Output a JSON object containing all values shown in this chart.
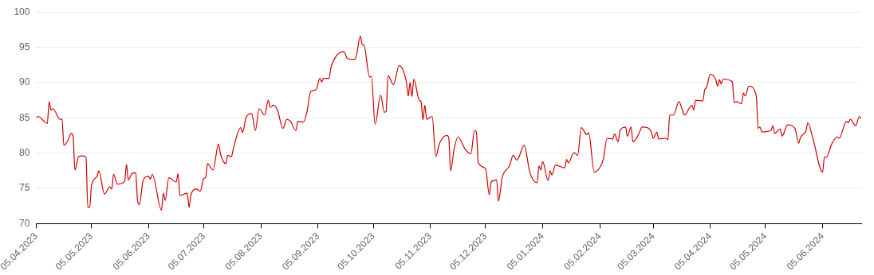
{
  "chart_data": {
    "type": "line",
    "grid": "y",
    "legend": false,
    "marker": "none",
    "xlim": [
      "2023-04-05",
      "2024-06-26"
    ],
    "xticks": [
      {
        "value": "2023-04-05",
        "label": "05.04.2023"
      },
      {
        "value": "2023-05-05",
        "label": "05.05.2023"
      },
      {
        "value": "2023-06-05",
        "label": "05.06.2023"
      },
      {
        "value": "2023-07-05",
        "label": "05.07.2023"
      },
      {
        "value": "2023-08-05",
        "label": "05.08.2023"
      },
      {
        "value": "2023-09-05",
        "label": "05.09.2023"
      },
      {
        "value": "2023-10-05",
        "label": "05.10.2023"
      },
      {
        "value": "2023-11-05",
        "label": "05.11.2023"
      },
      {
        "value": "2023-12-05",
        "label": "05.12.2023"
      },
      {
        "value": "2024-01-05",
        "label": "05.01.2024"
      },
      {
        "value": "2024-02-05",
        "label": "05.02.2024"
      },
      {
        "value": "2024-03-05",
        "label": "05.03.2024"
      },
      {
        "value": "2024-04-05",
        "label": "05.04.2024"
      },
      {
        "value": "2024-05-05",
        "label": "05.05.2024"
      },
      {
        "value": "2024-06-05",
        "label": "05.06.2024"
      }
    ],
    "ylim": [
      70,
      100
    ],
    "yticks": [
      70,
      75,
      80,
      85,
      90,
      95,
      100
    ],
    "x": [
      "2023-04-05",
      "2023-04-06",
      "2023-04-11",
      "2023-04-12",
      "2023-04-13",
      "2023-04-14",
      "2023-04-18",
      "2023-04-19",
      "2023-04-20",
      "2023-04-22",
      "2023-04-24",
      "2023-04-25",
      "2023-04-26",
      "2023-04-28",
      "2023-04-30",
      "2023-05-02",
      "2023-05-03",
      "2023-05-04",
      "2023-05-05",
      "2023-05-08",
      "2023-05-09",
      "2023-05-12",
      "2023-05-15",
      "2023-05-16",
      "2023-05-17",
      "2023-05-19",
      "2023-05-23",
      "2023-05-24",
      "2023-05-25",
      "2023-05-27",
      "2023-05-29",
      "2023-05-30",
      "2023-05-31",
      "2023-06-02",
      "2023-06-05",
      "2023-06-06",
      "2023-06-07",
      "2023-06-12",
      "2023-06-13",
      "2023-06-14",
      "2023-06-16",
      "2023-06-20",
      "2023-06-21",
      "2023-06-22",
      "2023-06-26",
      "2023-06-27",
      "2023-06-28",
      "2023-07-01",
      "2023-07-03",
      "2023-07-05",
      "2023-07-06",
      "2023-07-07",
      "2023-07-10",
      "2023-07-13",
      "2023-07-14",
      "2023-07-17",
      "2023-07-18",
      "2023-07-20",
      "2023-07-21",
      "2023-07-25",
      "2023-07-26",
      "2023-07-28",
      "2023-07-31",
      "2023-08-02",
      "2023-08-04",
      "2023-08-07",
      "2023-08-09",
      "2023-08-10",
      "2023-08-12",
      "2023-08-14",
      "2023-08-17",
      "2023-08-19",
      "2023-08-21",
      "2023-08-24",
      "2023-08-25",
      "2023-08-28",
      "2023-08-30",
      "2023-09-01",
      "2023-09-04",
      "2023-09-06",
      "2023-09-07",
      "2023-09-08",
      "2023-09-11",
      "2023-09-12",
      "2023-09-15",
      "2023-09-19",
      "2023-09-21",
      "2023-09-25",
      "2023-09-26",
      "2023-09-28",
      "2023-09-29",
      "2023-09-30",
      "2023-10-03",
      "2023-10-04",
      "2023-10-06",
      "2023-10-09",
      "2023-10-11",
      "2023-10-12",
      "2023-10-13",
      "2023-10-16",
      "2023-10-19",
      "2023-10-23",
      "2023-10-24",
      "2023-10-25",
      "2023-10-26",
      "2023-10-27",
      "2023-10-30",
      "2023-10-31",
      "2023-11-01",
      "2023-11-02",
      "2023-11-03",
      "2023-11-06",
      "2023-11-08",
      "2023-11-10",
      "2023-11-14",
      "2023-11-15",
      "2023-11-16",
      "2023-11-18",
      "2023-11-20",
      "2023-11-24",
      "2023-11-27",
      "2023-11-29",
      "2023-11-30",
      "2023-12-01",
      "2023-12-05",
      "2023-12-07",
      "2023-12-08",
      "2023-12-11",
      "2023-12-12",
      "2023-12-14",
      "2023-12-18",
      "2023-12-20",
      "2023-12-22",
      "2023-12-26",
      "2023-12-29",
      "2024-01-02",
      "2024-01-03",
      "2024-01-04",
      "2024-01-05",
      "2024-01-08",
      "2024-01-09",
      "2024-01-10",
      "2024-01-12",
      "2024-01-17",
      "2024-01-18",
      "2024-01-19",
      "2024-01-22",
      "2024-01-24",
      "2024-01-26",
      "2024-01-29",
      "2024-01-30",
      "2024-02-02",
      "2024-02-06",
      "2024-02-07",
      "2024-02-09",
      "2024-02-12",
      "2024-02-13",
      "2024-02-15",
      "2024-02-16",
      "2024-02-19",
      "2024-02-20",
      "2024-02-22",
      "2024-02-23",
      "2024-02-26",
      "2024-02-28",
      "2024-03-02",
      "2024-03-04",
      "2024-03-05",
      "2024-03-07",
      "2024-03-08",
      "2024-03-12",
      "2024-03-13",
      "2024-03-14",
      "2024-03-16",
      "2024-03-19",
      "2024-03-21",
      "2024-03-22",
      "2024-03-26",
      "2024-03-27",
      "2024-03-28",
      "2024-04-01",
      "2024-04-02",
      "2024-04-03",
      "2024-04-05",
      "2024-04-08",
      "2024-04-09",
      "2024-04-10",
      "2024-04-11",
      "2024-04-12",
      "2024-04-17",
      "2024-04-18",
      "2024-04-19",
      "2024-04-22",
      "2024-04-23",
      "2024-04-24",
      "2024-04-26",
      "2024-04-30",
      "2024-05-01",
      "2024-05-02",
      "2024-05-03",
      "2024-05-08",
      "2024-05-09",
      "2024-05-10",
      "2024-05-13",
      "2024-05-14",
      "2024-05-17",
      "2024-05-21",
      "2024-05-23",
      "2024-05-24",
      "2024-05-27",
      "2024-05-28",
      "2024-05-31",
      "2024-06-05",
      "2024-06-06",
      "2024-06-07",
      "2024-06-10",
      "2024-06-13",
      "2024-06-14",
      "2024-06-18",
      "2024-06-19",
      "2024-06-20",
      "2024-06-23",
      "2024-06-25",
      "2024-06-26"
    ],
    "series": [
      {
        "color": "#cc0000",
        "values": [
          85.0,
          85.2,
          84.2,
          87.3,
          86.1,
          86.3,
          84.8,
          84.8,
          81.1,
          81.7,
          82.8,
          82.4,
          77.6,
          79.5,
          79.6,
          79.4,
          72.3,
          72.3,
          75.4,
          76.7,
          77.5,
          74.2,
          75.2,
          74.9,
          77.0,
          75.6,
          76.0,
          78.4,
          76.2,
          77.1,
          77.2,
          73.3,
          72.7,
          76.1,
          76.7,
          76.3,
          77.0,
          71.9,
          74.3,
          73.3,
          76.5,
          75.9,
          77.1,
          74.0,
          74.3,
          72.3,
          74.1,
          74.9,
          74.6,
          76.4,
          76.6,
          78.5,
          77.6,
          81.3,
          79.9,
          78.5,
          79.7,
          79.5,
          80.6,
          83.6,
          82.9,
          85.1,
          85.6,
          83.2,
          86.3,
          85.4,
          87.5,
          86.5,
          86.8,
          86.1,
          83.5,
          84.8,
          84.5,
          83.2,
          84.5,
          84.4,
          85.8,
          88.7,
          89.0,
          90.6,
          90.1,
          90.6,
          90.6,
          92.1,
          93.8,
          94.4,
          93.4,
          93.3,
          94.0,
          96.6,
          95.4,
          95.3,
          90.8,
          90.9,
          84.1,
          88.2,
          85.8,
          85.9,
          91.0,
          89.7,
          92.4,
          90.1,
          88.1,
          90.0,
          88.0,
          90.5,
          87.5,
          87.3,
          84.7,
          86.8,
          84.8,
          85.2,
          79.5,
          81.4,
          82.5,
          82.2,
          77.5,
          80.7,
          82.3,
          80.5,
          79.9,
          83.2,
          83.0,
          78.7,
          77.8,
          74.1,
          75.9,
          76.2,
          73.2,
          76.5,
          78.2,
          79.7,
          79.0,
          81.1,
          77.3,
          75.8,
          78.2,
          77.6,
          78.8,
          76.1,
          77.5,
          76.9,
          78.3,
          77.9,
          79.1,
          78.6,
          80.1,
          79.7,
          83.6,
          82.6,
          82.9,
          77.3,
          78.4,
          79.2,
          82.1,
          82.0,
          82.7,
          81.6,
          83.2,
          83.7,
          82.4,
          83.7,
          81.6,
          82.6,
          83.7,
          83.6,
          83.0,
          82.1,
          83.0,
          82.0,
          82.1,
          81.9,
          85.4,
          85.4,
          87.3,
          86.0,
          85.4,
          86.8,
          86.1,
          87.5,
          87.4,
          89.0,
          89.3,
          91.2,
          90.4,
          89.5,
          90.4,
          89.8,
          90.5,
          90.1,
          87.2,
          87.3,
          87.0,
          88.5,
          88.1,
          89.5,
          88.1,
          83.5,
          83.7,
          83.0,
          83.2,
          83.9,
          82.8,
          83.4,
          82.4,
          84.0,
          83.5,
          81.4,
          82.2,
          83.2,
          84.3,
          81.8,
          77.3,
          79.4,
          79.4,
          81.3,
          82.3,
          82.1,
          84.5,
          84.3,
          84.8,
          83.9,
          85.2,
          84.9
        ]
      }
    ]
  }
}
